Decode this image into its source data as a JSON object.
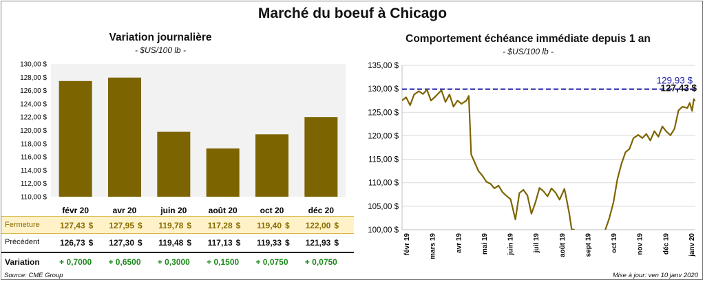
{
  "title": "Marché du boeuf à Chicago",
  "left_panel": {
    "title": "Variation  journalière",
    "subtitle": "- $US/100 lb -"
  },
  "right_panel": {
    "title": "Comportement  échéance immédiate depuis 1 an",
    "subtitle": "- $US/100 lb -"
  },
  "table": {
    "currency": "$",
    "rows": [
      {
        "label": "Fermeture",
        "values": [
          "127,43",
          "127,95",
          "119,78",
          "117,28",
          "119,40",
          "122,00"
        ],
        "highlight": "#fff2c9"
      },
      {
        "label": "Précédent",
        "values": [
          "126,73",
          "127,30",
          "119,48",
          "117,13",
          "119,33",
          "121,93"
        ]
      },
      {
        "label": "Variation",
        "values": [
          "+ 0,7000",
          "+ 0,6500",
          "+ 0,3000",
          "+ 0,1500",
          "+ 0,0750",
          "+ 0,0750"
        ]
      }
    ]
  },
  "footer": {
    "source": "Source: CME Group",
    "updated": "Mise à jour: ven 10 janv 2020"
  },
  "colors": {
    "bar": "#7c6400",
    "line": "#7c6400",
    "reference": "#1a1aa6",
    "value_label": "#1a1aa6"
  },
  "chart_data": [
    {
      "type": "bar",
      "categories": [
        "févr 20",
        "avr 20",
        "juin 20",
        "août 20",
        "oct 20",
        "déc 20"
      ],
      "values": [
        127.43,
        127.95,
        119.78,
        117.28,
        119.4,
        122.0
      ],
      "ylim": [
        110,
        130
      ],
      "yticks": [
        110,
        112,
        114,
        116,
        118,
        120,
        122,
        124,
        126,
        128,
        130
      ],
      "ytick_labels": [
        "110,00 $",
        "112,00 $",
        "114,00 $",
        "116,00 $",
        "118,00 $",
        "120,00 $",
        "122,00 $",
        "124,00 $",
        "126,00 $",
        "128,00 $",
        "130,00 $"
      ],
      "grid": false
    },
    {
      "type": "line",
      "ylim": [
        100,
        135
      ],
      "yticks": [
        100,
        105,
        110,
        115,
        120,
        125,
        130,
        135
      ],
      "ytick_labels": [
        "100,00 $",
        "105,00 $",
        "110,00 $",
        "115,00 $",
        "120,00 $",
        "125,00 $",
        "130,00 $",
        "135,00 $"
      ],
      "xticks": [
        "févr 19",
        "mars 19",
        "avr 19",
        "mai 19",
        "juin 19",
        "juil 19",
        "août 19",
        "sept 19",
        "oct 19",
        "nov 19",
        "déc 19",
        "janv 20"
      ],
      "reference_value": 129.93,
      "reference_label": "129,93 $",
      "last_label": "127,43 $",
      "grid": true,
      "series": [
        {
          "x": [
            "2019-01-10",
            "2019-01-15",
            "2019-01-20",
            "2019-01-25",
            "2019-01-31",
            "2019-02-05",
            "2019-02-10",
            "2019-02-15",
            "2019-02-20",
            "2019-02-28",
            "2019-03-05",
            "2019-03-10",
            "2019-03-15",
            "2019-03-20",
            "2019-03-25",
            "2019-03-31",
            "2019-04-03",
            "2019-04-06",
            "2019-04-10",
            "2019-04-15",
            "2019-04-20",
            "2019-04-25",
            "2019-04-30",
            "2019-05-05",
            "2019-05-10",
            "2019-05-15",
            "2019-05-20",
            "2019-05-25",
            "2019-05-31",
            "2019-06-05",
            "2019-06-10",
            "2019-06-15",
            "2019-06-20",
            "2019-06-25",
            "2019-06-30",
            "2019-07-05",
            "2019-07-10",
            "2019-07-15",
            "2019-07-20",
            "2019-07-25",
            "2019-07-31",
            "2019-08-03",
            "2019-08-06",
            "2019-08-09",
            "2019-08-12",
            "2019-08-15",
            "2019-08-20",
            "2019-08-25",
            "2019-08-31",
            "2019-09-03",
            "2019-09-06",
            "2019-09-09",
            "2019-09-12",
            "2019-09-15",
            "2019-09-20",
            "2019-09-25",
            "2019-09-30",
            "2019-10-05",
            "2019-10-10",
            "2019-10-15",
            "2019-10-20",
            "2019-10-25",
            "2019-10-31",
            "2019-11-05",
            "2019-11-10",
            "2019-11-15",
            "2019-11-20",
            "2019-11-25",
            "2019-11-30",
            "2019-12-05",
            "2019-12-10",
            "2019-12-15",
            "2019-12-20",
            "2019-12-25",
            "2019-12-31",
            "2020-01-03",
            "2020-01-06",
            "2020-01-08",
            "2020-01-10"
          ],
          "y": [
            127.5,
            128.2,
            126.5,
            128.8,
            129.5,
            128.9,
            129.8,
            127.5,
            128.3,
            129.7,
            127.2,
            128.8,
            126.2,
            127.5,
            126.8,
            127.5,
            128.5,
            116.0,
            114.5,
            112.5,
            111.5,
            110.2,
            109.8,
            108.8,
            109.4,
            108.0,
            107.2,
            106.5,
            102.2,
            107.8,
            108.5,
            107.3,
            103.4,
            105.8,
            108.9,
            108.2,
            107.1,
            108.8,
            107.9,
            106.4,
            108.7,
            106.2,
            103.5,
            100.1,
            100.0,
            99.3,
            98.5,
            99.2,
            99.6,
            98.8,
            98.0,
            96.8,
            97.4,
            98.2,
            100.0,
            102.5,
            105.8,
            110.8,
            114.0,
            116.5,
            117.2,
            119.5,
            120.2,
            119.5,
            120.4,
            119.0,
            121.0,
            119.8,
            122.0,
            120.9,
            120.1,
            121.5,
            125.4,
            126.2,
            125.9,
            127.0,
            125.3,
            127.8,
            127.43
          ]
        }
      ]
    }
  ]
}
